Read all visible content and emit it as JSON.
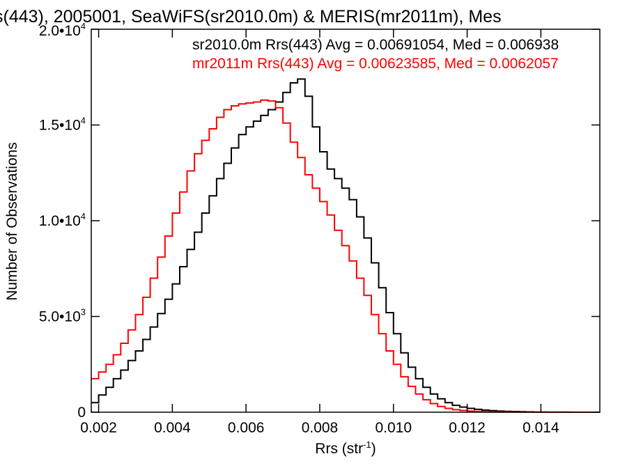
{
  "chart_data": {
    "type": "line",
    "title": "s(443), 2005001, SeaWiFS(sr2010.0m) & MERIS(mr2011m), Mes",
    "xlabel": "Rrs (str",
    "xlabel_sup": "-1",
    "xlabel_close": ")",
    "ylabel": "Number of Observations",
    "xlim": [
      0.0018,
      0.0156
    ],
    "ylim": [
      0,
      20000
    ],
    "grid": false,
    "x_ticks": [
      {
        "value": 0.002,
        "label": "0.002"
      },
      {
        "value": 0.004,
        "label": "0.004"
      },
      {
        "value": 0.006,
        "label": "0.006"
      },
      {
        "value": 0.008,
        "label": "0.008"
      },
      {
        "value": 0.01,
        "label": "0.010"
      },
      {
        "value": 0.012,
        "label": "0.012"
      },
      {
        "value": 0.014,
        "label": "0.014"
      }
    ],
    "y_ticks": [
      {
        "value": 0,
        "mant": "0",
        "exp": ""
      },
      {
        "value": 5000,
        "mant": "5.0•10",
        "exp": "3"
      },
      {
        "value": 10000,
        "mant": "1.0•10",
        "exp": "4"
      },
      {
        "value": 15000,
        "mant": "1.5•10",
        "exp": "4"
      },
      {
        "value": 20000,
        "mant": "2.0•10",
        "exp": "4"
      }
    ],
    "annotations": [
      {
        "text": "sr2010.0m Rrs(443) Avg = 0.00691054, Med = 0.006938",
        "color": "#000000"
      },
      {
        "text": "mr2011m Rrs(443) Avg = 0.00623585, Med = 0.0062057",
        "color": "#ff0000"
      }
    ],
    "series": [
      {
        "color": "#000000",
        "x": [
          0.0018,
          0.002,
          0.0022,
          0.0024,
          0.0026,
          0.0028,
          0.003,
          0.0032,
          0.0034,
          0.0036,
          0.0038,
          0.004,
          0.0042,
          0.0044,
          0.0046,
          0.0048,
          0.005,
          0.0052,
          0.0054,
          0.0056,
          0.0058,
          0.006,
          0.0062,
          0.0064,
          0.0066,
          0.0068,
          0.007,
          0.0072,
          0.0074,
          0.0076,
          0.0078,
          0.008,
          0.0082,
          0.0084,
          0.0086,
          0.0088,
          0.009,
          0.0092,
          0.0094,
          0.0096,
          0.0098,
          0.01,
          0.0102,
          0.0104,
          0.0106,
          0.0108,
          0.011,
          0.0112,
          0.0114,
          0.0116,
          0.0118,
          0.012,
          0.0122,
          0.0124,
          0.0126,
          0.0128,
          0.013,
          0.0132,
          0.0134,
          0.0136,
          0.0138,
          0.014,
          0.0142,
          0.0144,
          0.0146,
          0.0148,
          0.015,
          0.0152,
          0.0154,
          0.0156
        ],
        "y": [
          500,
          900,
          1300,
          1750,
          2200,
          2700,
          3200,
          3800,
          4450,
          5150,
          5900,
          6700,
          7600,
          8500,
          9400,
          10400,
          11300,
          12200,
          13000,
          13800,
          14500,
          14900,
          15200,
          15500,
          15800,
          16200,
          16700,
          17200,
          17400,
          16500,
          14900,
          13600,
          12700,
          12200,
          11700,
          11100,
          10200,
          9100,
          7800,
          6500,
          5200,
          4100,
          3100,
          2350,
          1750,
          1300,
          950,
          700,
          500,
          360,
          270,
          200,
          150,
          110,
          80,
          60,
          45,
          35,
          25,
          18,
          12,
          8,
          5,
          3,
          2,
          1,
          1,
          0,
          0,
          0
        ]
      },
      {
        "color": "#ff0000",
        "x": [
          0.0018,
          0.002,
          0.0022,
          0.0024,
          0.0026,
          0.0028,
          0.003,
          0.0032,
          0.0034,
          0.0036,
          0.0038,
          0.004,
          0.0042,
          0.0044,
          0.0046,
          0.0048,
          0.005,
          0.0052,
          0.0054,
          0.0056,
          0.0058,
          0.006,
          0.0062,
          0.0064,
          0.0066,
          0.0068,
          0.007,
          0.0072,
          0.0074,
          0.0076,
          0.0078,
          0.008,
          0.0082,
          0.0084,
          0.0086,
          0.0088,
          0.009,
          0.0092,
          0.0094,
          0.0096,
          0.0098,
          0.01,
          0.0102,
          0.0104,
          0.0106,
          0.0108,
          0.011,
          0.0112,
          0.0114,
          0.0116,
          0.0118,
          0.012,
          0.0122,
          0.0124,
          0.0126,
          0.0128,
          0.013,
          0.0132,
          0.0134,
          0.0136,
          0.0138,
          0.014,
          0.0142,
          0.0144,
          0.0146,
          0.0148,
          0.015,
          0.0152,
          0.0154,
          0.0156
        ],
        "y": [
          1750,
          2100,
          2500,
          3000,
          3600,
          4300,
          5100,
          6000,
          7000,
          8100,
          9200,
          10400,
          11500,
          12600,
          13500,
          14200,
          14800,
          15400,
          15800,
          16000,
          16100,
          16150,
          16200,
          16300,
          16250,
          15900,
          15100,
          14100,
          13300,
          12400,
          11700,
          11000,
          10300,
          9500,
          8700,
          7900,
          7000,
          6100,
          5100,
          4100,
          3200,
          2500,
          1850,
          1350,
          950,
          650,
          450,
          300,
          200,
          130,
          90,
          60,
          40,
          25,
          15,
          10,
          6,
          4,
          3,
          2,
          1,
          1,
          0,
          0,
          0,
          0,
          0,
          0,
          0,
          0
        ]
      }
    ]
  }
}
